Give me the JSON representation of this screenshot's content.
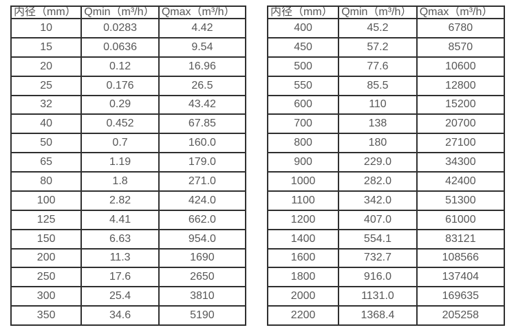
{
  "page": {
    "background": "#ffffff",
    "border_color": "#2f2f2f",
    "text_color": "#575757"
  },
  "tables": [
    {
      "name": "flow-spec-table-small-diameters",
      "headers": [
        "内径（mm）",
        "Qmin（m³/h）",
        "Qmax（m³/h）"
      ],
      "rows": [
        [
          "10",
          "0.0283",
          "4.42"
        ],
        [
          "15",
          "0.0636",
          "9.54"
        ],
        [
          "20",
          "0.12",
          "16.96"
        ],
        [
          "25",
          "0.176",
          "26.5"
        ],
        [
          "32",
          "0.29",
          "43.42"
        ],
        [
          "40",
          "0.452",
          "67.85"
        ],
        [
          "50",
          "0.7",
          "160.0"
        ],
        [
          "65",
          "1.19",
          "179.0"
        ],
        [
          "80",
          "1.8",
          "271.0"
        ],
        [
          "100",
          "2.82",
          "424.0"
        ],
        [
          "125",
          "4.41",
          "662.0"
        ],
        [
          "150",
          "6.63",
          "954.0"
        ],
        [
          "200",
          "11.3",
          "1690"
        ],
        [
          "250",
          "17.6",
          "2650"
        ],
        [
          "300",
          "25.4",
          "3810"
        ],
        [
          "350",
          "34.6",
          "5190"
        ]
      ]
    },
    {
      "name": "flow-spec-table-large-diameters",
      "headers": [
        "内径（mm）",
        "Qmin（m³/h）",
        "Qmax（m³/h）"
      ],
      "rows": [
        [
          "400",
          "45.2",
          "6780"
        ],
        [
          "450",
          "57.2",
          "8570"
        ],
        [
          "500",
          "77.6",
          "10600"
        ],
        [
          "550",
          "85.5",
          "12800"
        ],
        [
          "600",
          "110",
          "15200"
        ],
        [
          "700",
          "138",
          "20700"
        ],
        [
          "800",
          "180",
          "27100"
        ],
        [
          "900",
          "229.0",
          "34300"
        ],
        [
          "1000",
          "282.0",
          "42400"
        ],
        [
          "1100",
          "342.0",
          "51300"
        ],
        [
          "1200",
          "407.0",
          "61000"
        ],
        [
          "1400",
          "554.1",
          "83121"
        ],
        [
          "1600",
          "732.7",
          "108566"
        ],
        [
          "1800",
          "916.0",
          "137404"
        ],
        [
          "2000",
          "1131.0",
          "169635"
        ],
        [
          "2200",
          "1368.4",
          "205258"
        ]
      ]
    }
  ]
}
